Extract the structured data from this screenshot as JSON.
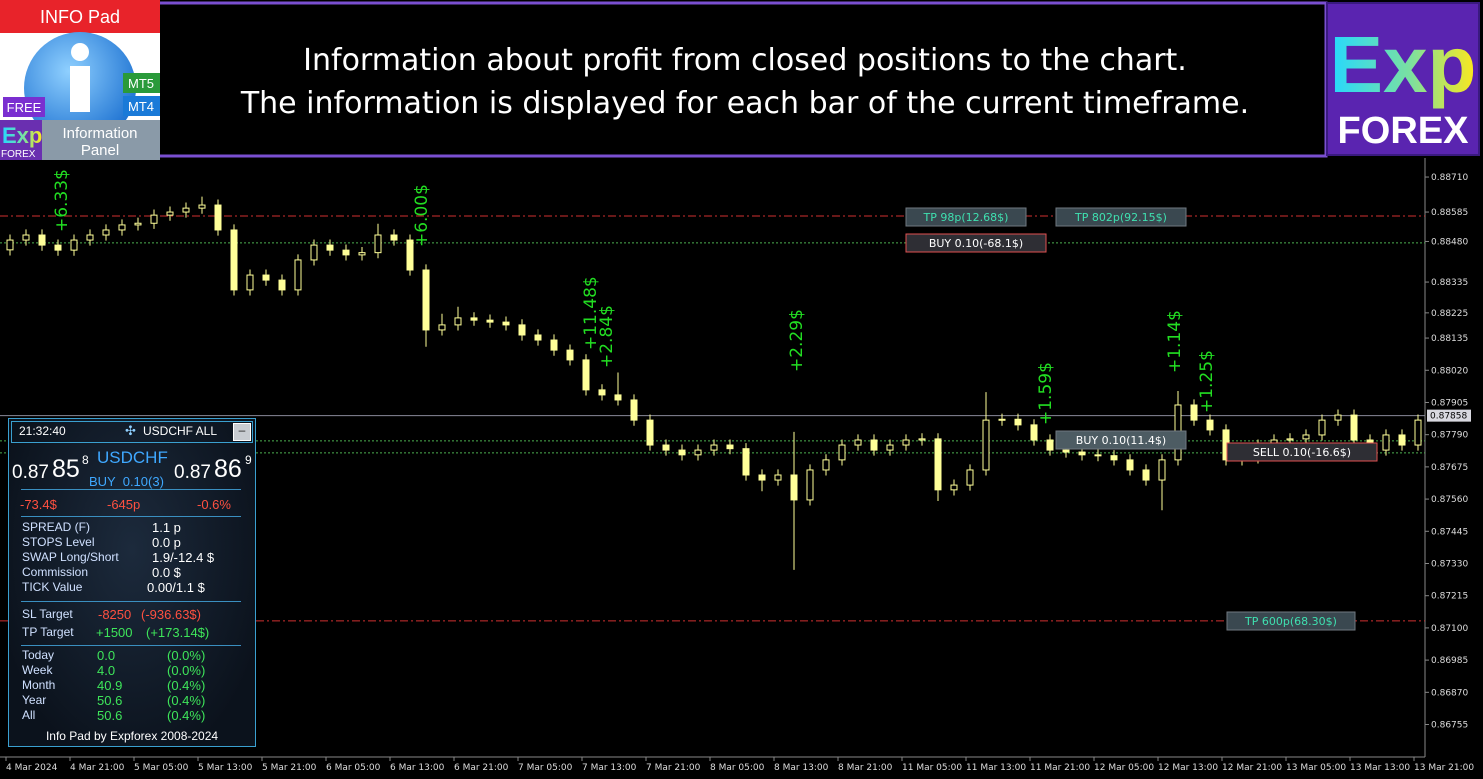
{
  "header": {
    "badge": "INFO Pad",
    "free": "FREE",
    "logo_exp": "Exp",
    "logo_forex": "FOREX",
    "mt5": "MT5",
    "mt4": "MT4",
    "panel_name_1": "Information",
    "panel_name_2": "Panel",
    "title_1": "Information about profit from closed positions to the chart.",
    "title_2": "The information is displayed for each bar of the current timeframe.",
    "brand_exp": "Exp",
    "brand_forex": "FOREX"
  },
  "chart_data": {
    "type": "candlestick",
    "color": "#ffff99",
    "ylim": [
      0.86639,
      0.88778
    ],
    "yticks": [
      {
        "value": 0.8871,
        "label": "0.88710"
      },
      0.88585,
      {
        "value": 0.8848,
        "label": "0.88480"
      },
      0.88335,
      0.88225,
      0.88135,
      {
        "value": 0.8802,
        "label": "0.88020"
      },
      0.87905,
      {
        "value": 0.8779,
        "label": "0.87790"
      },
      0.87675,
      {
        "value": 0.8756,
        "label": "0.87560"
      },
      0.87445,
      {
        "value": 0.8733,
        "label": "0.87330"
      },
      0.87215,
      {
        "value": 0.871,
        "label": "0.87100"
      },
      0.86985,
      {
        "value": 0.8687,
        "label": "0.86870"
      },
      0.86755
    ],
    "xlabels": [
      "4 Mar 2024",
      "4 Mar 21:00",
      "5 Mar 05:00",
      "5 Mar 13:00",
      "5 Mar 21:00",
      "6 Mar 05:00",
      "6 Mar 13:00",
      "6 Mar 21:00",
      "7 Mar 05:00",
      "7 Mar 13:00",
      "7 Mar 21:00",
      "8 Mar 05:00",
      "8 Mar 13:00",
      "8 Mar 21:00",
      "11 Mar 05:00",
      "11 Mar 13:00",
      "11 Mar 21:00",
      "12 Mar 05:00",
      "12 Mar 13:00",
      "12 Mar 21:00",
      "13 Mar 05:00",
      "13 Mar 13:00",
      "13 Mar 21:00"
    ],
    "current_price": 0.87858,
    "levels": [
      {
        "price": 0.88571,
        "color": "#d03030",
        "style": "dashdot"
      },
      {
        "price": 0.88475,
        "color": "#4caf50",
        "style": "dotted"
      },
      {
        "price": 0.87768,
        "color": "#4caf50",
        "style": "dotted"
      },
      {
        "price": 0.87725,
        "color": "#4caf50",
        "style": "dotted"
      },
      {
        "price": 0.87125,
        "color": "#d03030",
        "style": "dashdot"
      }
    ],
    "order_labels": [
      "TP 98p(12.68$)",
      "TP 802p(92.15$)",
      "BUY 0.10(-68.1$)",
      "BUY 0.10(11.4$)",
      "SELL 0.10(-16.6$)",
      "TP 600p(68.30$)"
    ],
    "profit_labels": [
      "+6.33$",
      "+6.00$",
      "+11.48$",
      "+2.84$",
      "+2.29$",
      "+1.59$",
      "+1.14$",
      "+1.25$"
    ],
    "candles": [
      [
        0.8845,
        0.88505,
        0.8843,
        0.88485
      ],
      [
        0.88485,
        0.88523,
        0.88465,
        0.88503
      ],
      [
        0.88503,
        0.88523,
        0.88447,
        0.88467
      ],
      [
        0.88467,
        0.88487,
        0.88429,
        0.88449
      ],
      [
        0.88449,
        0.88505,
        0.88429,
        0.88485
      ],
      [
        0.88485,
        0.88523,
        0.88465,
        0.88503
      ],
      [
        0.88503,
        0.88541,
        0.88483,
        0.88521
      ],
      [
        0.88521,
        0.88559,
        0.88501,
        0.88539
      ],
      [
        0.88539,
        0.88565,
        0.88519,
        0.88545
      ],
      [
        0.88545,
        0.88594,
        0.88525,
        0.88574
      ],
      [
        0.88574,
        0.88605,
        0.88554,
        0.88585
      ],
      [
        0.88585,
        0.88619,
        0.88565,
        0.88599
      ],
      [
        0.88599,
        0.8864,
        0.88579,
        0.8861
      ],
      [
        0.8861,
        0.8863,
        0.88501,
        0.88521
      ],
      [
        0.88521,
        0.88541,
        0.88287,
        0.88307
      ],
      [
        0.88307,
        0.8838,
        0.88287,
        0.8836
      ],
      [
        0.8836,
        0.8838,
        0.88322,
        0.88342
      ],
      [
        0.88342,
        0.88362,
        0.88287,
        0.88307
      ],
      [
        0.88307,
        0.88434,
        0.88287,
        0.88414
      ],
      [
        0.88414,
        0.88487,
        0.88394,
        0.88467
      ],
      [
        0.88467,
        0.88487,
        0.88429,
        0.88449
      ],
      [
        0.88449,
        0.88469,
        0.88412,
        0.88432
      ],
      [
        0.88432,
        0.8846,
        0.88412,
        0.8844
      ],
      [
        0.8844,
        0.88543,
        0.8842,
        0.88503
      ],
      [
        0.88503,
        0.88523,
        0.88465,
        0.88485
      ],
      [
        0.88485,
        0.88505,
        0.88358,
        0.88378
      ],
      [
        0.88378,
        0.88398,
        0.88104,
        0.88164
      ],
      [
        0.88164,
        0.88222,
        0.88144,
        0.88182
      ],
      [
        0.88182,
        0.88247,
        0.88162,
        0.88207
      ],
      [
        0.88207,
        0.88227,
        0.88179,
        0.88199
      ],
      [
        0.88199,
        0.88219,
        0.88172,
        0.88192
      ],
      [
        0.88192,
        0.88212,
        0.88162,
        0.88182
      ],
      [
        0.88182,
        0.88202,
        0.88126,
        0.88146
      ],
      [
        0.88146,
        0.88166,
        0.88108,
        0.88128
      ],
      [
        0.88128,
        0.88148,
        0.88072,
        0.88092
      ],
      [
        0.88092,
        0.88112,
        0.88037,
        0.88057
      ],
      [
        0.88057,
        0.88077,
        0.8793,
        0.8795
      ],
      [
        0.8795,
        0.8797,
        0.87912,
        0.87932
      ],
      [
        0.87932,
        0.88012,
        0.87894,
        0.87914
      ],
      [
        0.87914,
        0.87934,
        0.87822,
        0.87842
      ],
      [
        0.87842,
        0.87862,
        0.87733,
        0.87753
      ],
      [
        0.87753,
        0.87773,
        0.87715,
        0.87735
      ],
      [
        0.87735,
        0.87755,
        0.87698,
        0.87718
      ],
      [
        0.87718,
        0.87755,
        0.87698,
        0.87735
      ],
      [
        0.87735,
        0.87773,
        0.87715,
        0.87753
      ],
      [
        0.87753,
        0.87773,
        0.8772,
        0.8774
      ],
      [
        0.8774,
        0.8776,
        0.87626,
        0.87646
      ],
      [
        0.87646,
        0.87666,
        0.87588,
        0.87628
      ],
      [
        0.87628,
        0.87666,
        0.87608,
        0.87646
      ],
      [
        0.87646,
        0.878,
        0.87307,
        0.87557
      ],
      [
        0.87557,
        0.87684,
        0.87537,
        0.87664
      ],
      [
        0.87664,
        0.8772,
        0.87644,
        0.877
      ],
      [
        0.877,
        0.87773,
        0.8768,
        0.87753
      ],
      [
        0.87753,
        0.87791,
        0.87733,
        0.87771
      ],
      [
        0.87771,
        0.87791,
        0.87715,
        0.87735
      ],
      [
        0.87735,
        0.87773,
        0.87715,
        0.87753
      ],
      [
        0.87753,
        0.87791,
        0.87733,
        0.87771
      ],
      [
        0.87771,
        0.87795,
        0.87751,
        0.87775
      ],
      [
        0.87775,
        0.87795,
        0.87553,
        0.87593
      ],
      [
        0.87593,
        0.8763,
        0.87573,
        0.8761
      ],
      [
        0.8761,
        0.87684,
        0.8759,
        0.87664
      ],
      [
        0.87664,
        0.87942,
        0.87644,
        0.87842
      ],
      [
        0.87842,
        0.87865,
        0.87822,
        0.87845
      ],
      [
        0.87845,
        0.87865,
        0.87805,
        0.87825
      ],
      [
        0.87825,
        0.87845,
        0.87751,
        0.87771
      ],
      [
        0.87771,
        0.87791,
        0.87715,
        0.87735
      ],
      [
        0.87735,
        0.87755,
        0.87708,
        0.87728
      ],
      [
        0.87728,
        0.87748,
        0.87698,
        0.87718
      ],
      [
        0.87718,
        0.87738,
        0.87695,
        0.87715
      ],
      [
        0.87715,
        0.87735,
        0.8768,
        0.877
      ],
      [
        0.877,
        0.8772,
        0.87644,
        0.87664
      ],
      [
        0.87664,
        0.87684,
        0.87608,
        0.87628
      ],
      [
        0.87628,
        0.8772,
        0.8752,
        0.877
      ],
      [
        0.877,
        0.87946,
        0.8768,
        0.87896
      ],
      [
        0.87896,
        0.87916,
        0.87822,
        0.87842
      ],
      [
        0.87842,
        0.87862,
        0.87787,
        0.87807
      ],
      [
        0.87807,
        0.87827,
        0.8768,
        0.877
      ],
      [
        0.877,
        0.87727,
        0.8768,
        0.87707
      ],
      [
        0.87707,
        0.87773,
        0.87687,
        0.87753
      ],
      [
        0.87753,
        0.87791,
        0.87733,
        0.87771
      ],
      [
        0.87771,
        0.87795,
        0.87751,
        0.87775
      ],
      [
        0.87775,
        0.87809,
        0.87755,
        0.87789
      ],
      [
        0.87789,
        0.87862,
        0.87769,
        0.87842
      ],
      [
        0.87842,
        0.8788,
        0.87822,
        0.8786
      ],
      [
        0.8786,
        0.8788,
        0.87751,
        0.87771
      ],
      [
        0.87771,
        0.87791,
        0.87715,
        0.87735
      ],
      [
        0.87735,
        0.87809,
        0.87715,
        0.87789
      ],
      [
        0.87789,
        0.87809,
        0.87733,
        0.87753
      ],
      [
        0.87753,
        0.87862,
        0.87733,
        0.87842
      ]
    ]
  },
  "panel": {
    "time": "21:32:40",
    "symbol_all": "USDCHF ALL",
    "bid_big": "0.87",
    "bid_pips": "85",
    "bid_frac": "8",
    "symbol": "USDCHF",
    "position": "BUY  0.10(3)",
    "ask_big": "0.87",
    "ask_pips": "86",
    "ask_frac": "9",
    "profit": "-73.4$",
    "profit_points": "-645p",
    "profit_percent": "-0.6%",
    "info": [
      [
        "SPREAD (F)",
        "1.1 p"
      ],
      [
        "STOPS Level",
        "0.0 p"
      ],
      [
        "SWAP Long/Short",
        "1.9/-12.4 $"
      ],
      [
        "Commission",
        "0.0 $"
      ],
      [
        "TICK Value",
        "0.00/1.1 $"
      ]
    ],
    "targets": [
      [
        "SL Target",
        "-8250",
        "(-936.63$)"
      ],
      [
        "TP Target",
        "+1500",
        "(+173.14$)"
      ]
    ],
    "stats": [
      [
        "Today",
        "0.0",
        "(0.0%)"
      ],
      [
        "Week",
        "4.0",
        "(0.0%)"
      ],
      [
        "Month",
        "40.9",
        "(0.4%)"
      ],
      [
        "Year",
        "50.6",
        "(0.4%)"
      ],
      [
        "All",
        "50.6",
        "(0.4%)"
      ]
    ],
    "footer": "Info Pad by Expforex 2008-2024"
  }
}
